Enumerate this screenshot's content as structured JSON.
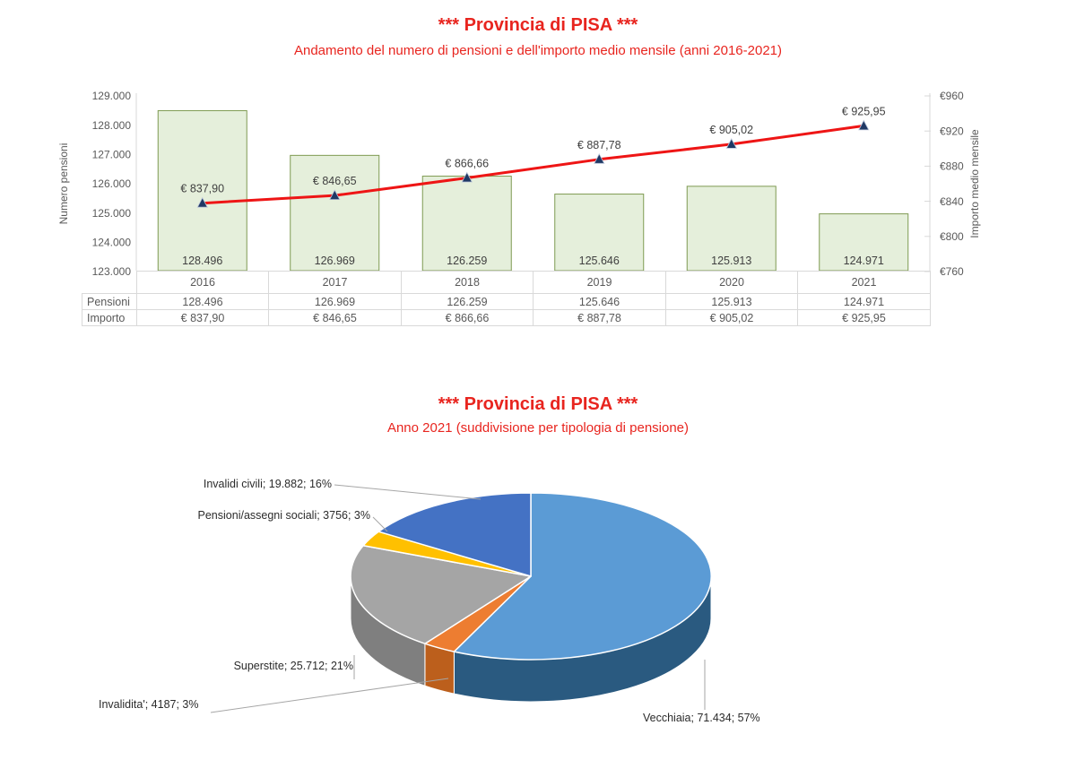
{
  "colors": {
    "title_red": "#e8251f",
    "bar_fill": "#e5efdb",
    "bar_border": "#7f9a52",
    "line_red": "#ee1515",
    "marker_navy": "#1f3864",
    "axis_text": "#595959",
    "grid_border": "#d9d9d9",
    "data_label": "#404040",
    "pie_label": "#2b2b2b",
    "leader_line": "#a6a6a6"
  },
  "chart_data": [
    {
      "type": "bar",
      "combo": "bar+line",
      "title": "*** Provincia di PISA ***",
      "subtitle": "Andamento del numero di pensioni e dell'importo medio mensile (anni 2016-2021)",
      "categories": [
        "2016",
        "2017",
        "2018",
        "2019",
        "2020",
        "2021"
      ],
      "series": [
        {
          "name": "Pensioni",
          "type": "bar",
          "axis": "left",
          "values": [
            128496,
            126969,
            126259,
            125646,
            125913,
            124971
          ],
          "labels": [
            "128.496",
            "126.969",
            "126.259",
            "125.646",
            "125.913",
            "124.971"
          ]
        },
        {
          "name": "Importo",
          "type": "line",
          "axis": "right",
          "values": [
            837.9,
            846.65,
            866.66,
            887.78,
            905.02,
            925.95
          ],
          "labels": [
            "€ 837,90",
            "€ 846,65",
            "€ 866,66",
            "€ 887,78",
            "€ 905,02",
            "€ 925,95"
          ]
        }
      ],
      "left_axis": {
        "title": "Numero pensioni",
        "min": 123000,
        "max": 129000,
        "step": 1000,
        "tick_labels": [
          "129.000",
          "128.000",
          "127.000",
          "126.000",
          "125.000",
          "124.000",
          "123.000"
        ]
      },
      "right_axis": {
        "title": "Importo medio mensile",
        "min": 760,
        "max": 960,
        "step": 40,
        "tick_labels": [
          "€960",
          "€920",
          "€880",
          "€840",
          "€800",
          "€760"
        ]
      },
      "data_table": {
        "row_headers": [
          "Pensioni",
          "Importo"
        ]
      },
      "grid": "off",
      "legend": "none"
    },
    {
      "type": "pie",
      "style": "3d",
      "title": "*** Provincia di PISA ***",
      "subtitle": "Anno 2021 (suddivisione per tipologia di pensione)",
      "start_angle_deg": 0,
      "direction": "clockwise",
      "slices": [
        {
          "name": "Vecchiaia",
          "value": 71434,
          "pct": 57,
          "label": "Vecchiaia; 71.434; 57%",
          "color": "#5b9bd5",
          "side_color": "#2a5a80"
        },
        {
          "name": "Invalidita'",
          "value": 4187,
          "pct": 3,
          "label": "Invalidita'; 4187; 3%",
          "color": "#ed7d31",
          "side_color": "#bc5f1c"
        },
        {
          "name": "Superstite",
          "value": 25712,
          "pct": 21,
          "label": "Superstite; 25.712; 21%",
          "color": "#a5a5a5",
          "side_color": "#7f7f7f"
        },
        {
          "name": "Pensioni/assegni sociali",
          "value": 3756,
          "pct": 3,
          "label": "Pensioni/assegni sociali; 3756; 3%",
          "color": "#ffc000",
          "side_color": "#bf9000"
        },
        {
          "name": "Invalidi civili",
          "value": 19882,
          "pct": 16,
          "label": "Invalidi civili; 19.882; 16%",
          "color": "#4472c4",
          "side_color": "#2f528f"
        }
      ],
      "legend": "none"
    }
  ]
}
